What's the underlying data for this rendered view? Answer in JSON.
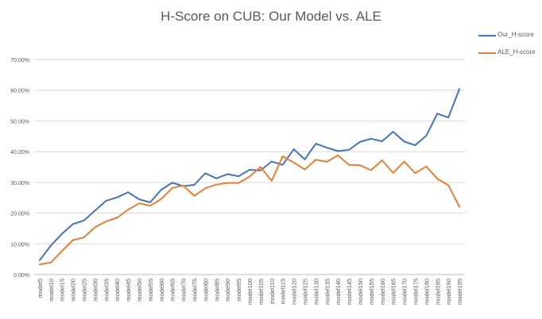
{
  "chart_data": {
    "type": "line",
    "title": "H-Score on CUB: Our Model vs. ALE",
    "xlabel": "",
    "ylabel": "",
    "ylim": [
      0,
      0.7
    ],
    "y_ticks": [
      "0.00%",
      "10.00%",
      "20.00%",
      "30.00%",
      "40.00%",
      "50.00%",
      "60.00%",
      "70.00%"
    ],
    "grid": "horizontal",
    "legend_position": "top-right",
    "categories": [
      "model5",
      "model10",
      "model15",
      "model20",
      "model25",
      "model30",
      "model35",
      "model40",
      "model45",
      "model50",
      "model55",
      "model60",
      "model65",
      "model70",
      "model75",
      "model80",
      "model85",
      "model90",
      "model95",
      "model100",
      "model105",
      "model110",
      "model115",
      "model120",
      "model125",
      "model130",
      "model135",
      "model140",
      "model145",
      "model150",
      "model155",
      "model160",
      "model165",
      "model170",
      "model175",
      "model180",
      "model185",
      "model190",
      "model195"
    ],
    "series": [
      {
        "name": "Our_H-score",
        "color": "#4472C4",
        "values": [
          0.047,
          0.094,
          0.132,
          0.164,
          0.176,
          0.208,
          0.24,
          0.251,
          0.268,
          0.245,
          0.235,
          0.276,
          0.299,
          0.288,
          0.292,
          0.33,
          0.313,
          0.327,
          0.32,
          0.341,
          0.339,
          0.368,
          0.357,
          0.408,
          0.375,
          0.426,
          0.413,
          0.402,
          0.406,
          0.432,
          0.442,
          0.434,
          0.465,
          0.433,
          0.421,
          0.452,
          0.524,
          0.511,
          0.604
        ]
      },
      {
        "name": "ALE_H-score",
        "color": "#ED7D31",
        "values": [
          0.033,
          0.039,
          0.076,
          0.112,
          0.121,
          0.154,
          0.173,
          0.185,
          0.211,
          0.232,
          0.224,
          0.246,
          0.282,
          0.29,
          0.256,
          0.281,
          0.293,
          0.298,
          0.298,
          0.319,
          0.35,
          0.305,
          0.385,
          0.365,
          0.342,
          0.374,
          0.367,
          0.388,
          0.357,
          0.356,
          0.34,
          0.372,
          0.331,
          0.368,
          0.33,
          0.352,
          0.312,
          0.291,
          0.221
        ]
      }
    ]
  }
}
